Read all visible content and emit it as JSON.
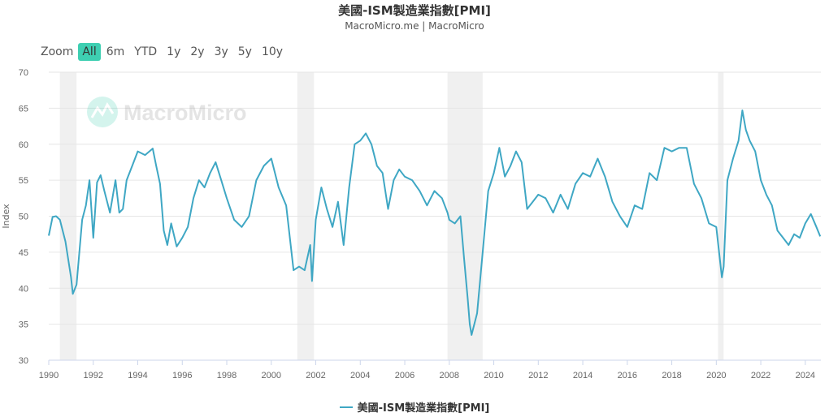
{
  "header": {
    "title": "美國-ISM製造業指數[PMI]",
    "subtitle": "MacroMicro.me | MacroMicro"
  },
  "zoom": {
    "label": "Zoom",
    "buttons": [
      "All",
      "6m",
      "YTD",
      "1y",
      "2y",
      "3y",
      "5y",
      "10y"
    ],
    "active": "All"
  },
  "watermark": "MacroMicro",
  "colors": {
    "line": "#3fa7c4",
    "recession": "#f0f0f0",
    "active_button": "#3ecfb2",
    "grid": "#e6e6e6"
  },
  "chart_data": {
    "type": "line",
    "title": "美國-ISM製造業指數[PMI]",
    "subtitle": "MacroMicro.me | MacroMicro",
    "ylabel": "Index",
    "xlabel": "",
    "ylim": [
      30,
      70
    ],
    "xlim": [
      1990,
      2024.7
    ],
    "yticks": [
      30,
      35,
      40,
      45,
      50,
      55,
      60,
      65,
      70
    ],
    "xticks": [
      1990,
      1992,
      1994,
      1996,
      1998,
      2000,
      2002,
      2004,
      2006,
      2008,
      2010,
      2012,
      2014,
      2016,
      2018,
      2020,
      2022,
      2024
    ],
    "grid": "horizontal",
    "legend": "bottom-center",
    "recessions": [
      [
        1990.5,
        1991.25
      ],
      [
        2001.17,
        2001.92
      ],
      [
        2007.92,
        2009.5
      ],
      [
        2020.08,
        2020.33
      ]
    ],
    "series": [
      {
        "name": "美國-ISM製造業指數[PMI]",
        "x": [
          1990.0,
          1990.17,
          1990.33,
          1990.5,
          1990.75,
          1991.0,
          1991.08,
          1991.25,
          1991.5,
          1991.67,
          1991.83,
          1992.0,
          1992.17,
          1992.33,
          1992.5,
          1992.75,
          1993.0,
          1993.17,
          1993.33,
          1993.5,
          1993.75,
          1994.0,
          1994.33,
          1994.67,
          1994.83,
          1995.0,
          1995.17,
          1995.33,
          1995.5,
          1995.75,
          1996.0,
          1996.25,
          1996.5,
          1996.75,
          1997.0,
          1997.25,
          1997.5,
          1997.75,
          1998.0,
          1998.33,
          1998.67,
          1999.0,
          1999.33,
          1999.67,
          2000.0,
          2000.33,
          2000.67,
          2001.0,
          2001.25,
          2001.5,
          2001.75,
          2001.83,
          2002.0,
          2002.25,
          2002.5,
          2002.75,
          2003.0,
          2003.25,
          2003.5,
          2003.75,
          2004.0,
          2004.25,
          2004.5,
          2004.75,
          2005.0,
          2005.25,
          2005.5,
          2005.75,
          2006.0,
          2006.33,
          2006.67,
          2007.0,
          2007.33,
          2007.67,
          2007.92,
          2008.0,
          2008.25,
          2008.5,
          2008.67,
          2008.83,
          2008.92,
          2009.0,
          2009.25,
          2009.5,
          2009.75,
          2010.0,
          2010.25,
          2010.5,
          2010.75,
          2011.0,
          2011.25,
          2011.5,
          2011.75,
          2012.0,
          2012.33,
          2012.67,
          2013.0,
          2013.33,
          2013.67,
          2014.0,
          2014.33,
          2014.67,
          2015.0,
          2015.33,
          2015.67,
          2016.0,
          2016.33,
          2016.67,
          2017.0,
          2017.33,
          2017.67,
          2018.0,
          2018.33,
          2018.67,
          2019.0,
          2019.33,
          2019.67,
          2020.0,
          2020.25,
          2020.33,
          2020.5,
          2020.75,
          2021.0,
          2021.17,
          2021.33,
          2021.5,
          2021.75,
          2022.0,
          2022.25,
          2022.5,
          2022.75,
          2023.0,
          2023.25,
          2023.5,
          2023.75,
          2024.0,
          2024.25,
          2024.5,
          2024.67
        ],
        "values": [
          47.3,
          49.9,
          50.0,
          49.5,
          46.5,
          41.5,
          39.2,
          40.5,
          49.5,
          51.5,
          55.0,
          47.0,
          54.7,
          55.7,
          53.5,
          50.5,
          55.0,
          50.5,
          51.0,
          55.0,
          57.0,
          59.0,
          58.5,
          59.4,
          57.0,
          54.5,
          48.0,
          46.0,
          49.0,
          45.8,
          47.0,
          48.5,
          52.5,
          55.0,
          54.0,
          56.0,
          57.5,
          55.0,
          52.5,
          49.5,
          48.5,
          50.0,
          55.0,
          57.0,
          58.0,
          54.0,
          51.5,
          42.5,
          43.0,
          42.5,
          46.0,
          41.0,
          49.5,
          54.0,
          51.0,
          48.5,
          52.0,
          46.0,
          54.0,
          60.0,
          60.5,
          61.5,
          60.0,
          57.0,
          56.0,
          51.0,
          55.0,
          56.5,
          55.5,
          55.0,
          53.5,
          51.5,
          53.5,
          52.5,
          50.5,
          49.5,
          49.0,
          50.0,
          44.0,
          38.5,
          35.0,
          33.5,
          36.5,
          45.0,
          53.5,
          56.0,
          59.5,
          55.5,
          57.0,
          59.0,
          57.5,
          51.0,
          52.0,
          53.0,
          52.5,
          50.5,
          53.0,
          51.0,
          54.5,
          56.0,
          55.5,
          58.0,
          55.5,
          52.0,
          50.0,
          48.5,
          51.5,
          51.0,
          56.0,
          55.0,
          59.5,
          59.0,
          59.5,
          59.5,
          54.5,
          52.5,
          49.0,
          48.5,
          41.5,
          43.0,
          55.0,
          58.0,
          60.5,
          64.7,
          62.0,
          60.5,
          59.0,
          55.0,
          53.0,
          51.5,
          48.0,
          47.0,
          46.0,
          47.5,
          47.0,
          49.0,
          50.3,
          48.5,
          47.2
        ]
      }
    ]
  }
}
